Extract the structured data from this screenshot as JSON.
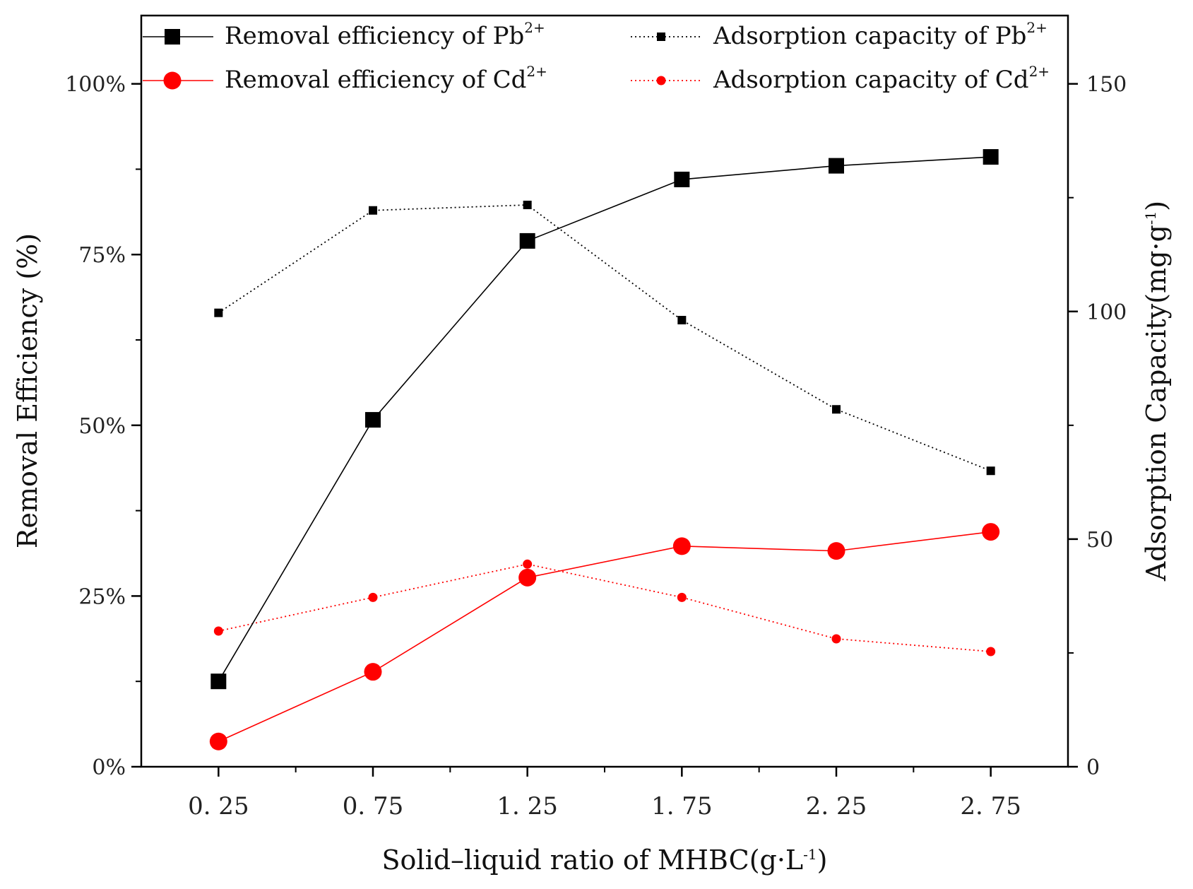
{
  "chart_data": {
    "type": "line",
    "title": "",
    "categories": [
      "0. 25",
      "0. 75",
      "1. 25",
      "1. 75",
      "2. 25",
      "2. 75"
    ],
    "x": [
      0.25,
      0.75,
      1.25,
      1.75,
      2.25,
      2.75
    ],
    "xlabel": "Solid–liquid ratio of MHBC(g·L",
    "xlabel_sup": "-1",
    "xlabel_end": ")",
    "xlim": [
      0,
      3
    ],
    "ylabel_left": "Removal Efficiency (%)",
    "ylim_left": [
      0,
      1.1
    ],
    "left_ticks": [
      {
        "value": 0.0,
        "label": "0%"
      },
      {
        "value": 0.25,
        "label": "25%"
      },
      {
        "value": 0.5,
        "label": "50%"
      },
      {
        "value": 0.75,
        "label": "75%"
      },
      {
        "value": 1.0,
        "label": "100%"
      }
    ],
    "ylabel_right": "Adsorption Capacity(mg·g",
    "ylabel_right_sup": "-1",
    "ylabel_right_end": ")",
    "ylim_right": [
      0,
      165
    ],
    "right_ticks": [
      {
        "value": 0,
        "label": "0"
      },
      {
        "value": 50,
        "label": "50"
      },
      {
        "value": 100,
        "label": "100"
      },
      {
        "value": 150,
        "label": "150"
      }
    ],
    "series": [
      {
        "name": "Removal efficiency of Pb",
        "sup": "2+",
        "axis": "left",
        "color": "#000000",
        "marker": "square",
        "style": "solid",
        "values": [
          0.125,
          0.508,
          0.77,
          0.86,
          0.88,
          0.893
        ]
      },
      {
        "name": "Removal efficiency of Cd",
        "sup": "2+",
        "axis": "left",
        "color": "#ff0000",
        "marker": "circle",
        "style": "solid",
        "values": [
          0.037,
          0.139,
          0.277,
          0.323,
          0.316,
          0.344
        ]
      },
      {
        "name": "Adsorption capacity of Pb",
        "sup": "2+",
        "axis": "right",
        "color": "#000000",
        "marker": "square-small",
        "style": "dotted",
        "values": [
          99.7,
          122.2,
          123.4,
          98.1,
          78.5,
          65.0
        ]
      },
      {
        "name": "Adsorption capacity of Cd",
        "sup": "2+",
        "axis": "right",
        "color": "#ff0000",
        "marker": "circle-small",
        "style": "dotted",
        "values": [
          29.8,
          37.2,
          44.5,
          37.2,
          28.1,
          25.3
        ]
      }
    ],
    "legend_position": "top"
  }
}
